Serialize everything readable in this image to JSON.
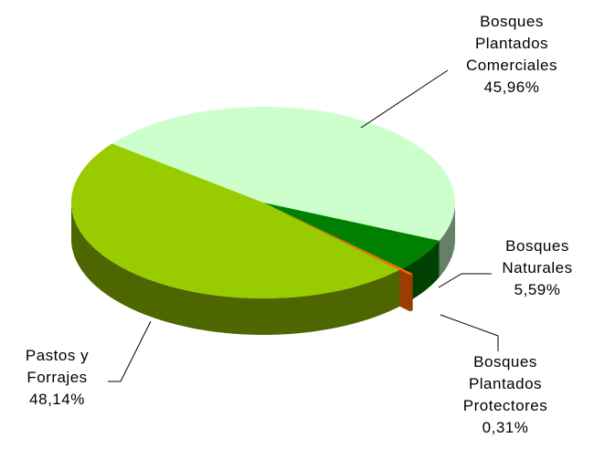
{
  "chart_data": {
    "type": "pie",
    "categories": [
      "Bosques Plantados Comerciales",
      "Bosques Naturales",
      "Bosques Plantados Protectores",
      "Pastos y Forrajes"
    ],
    "values": [
      45.96,
      5.59,
      0.31,
      48.14
    ],
    "value_labels": [
      "45,96%",
      "5,59%",
      "0,31%",
      "48,14%"
    ],
    "colors": [
      "#ccffcc",
      "#008000",
      "#ff6600",
      "#99cc00"
    ]
  }
}
